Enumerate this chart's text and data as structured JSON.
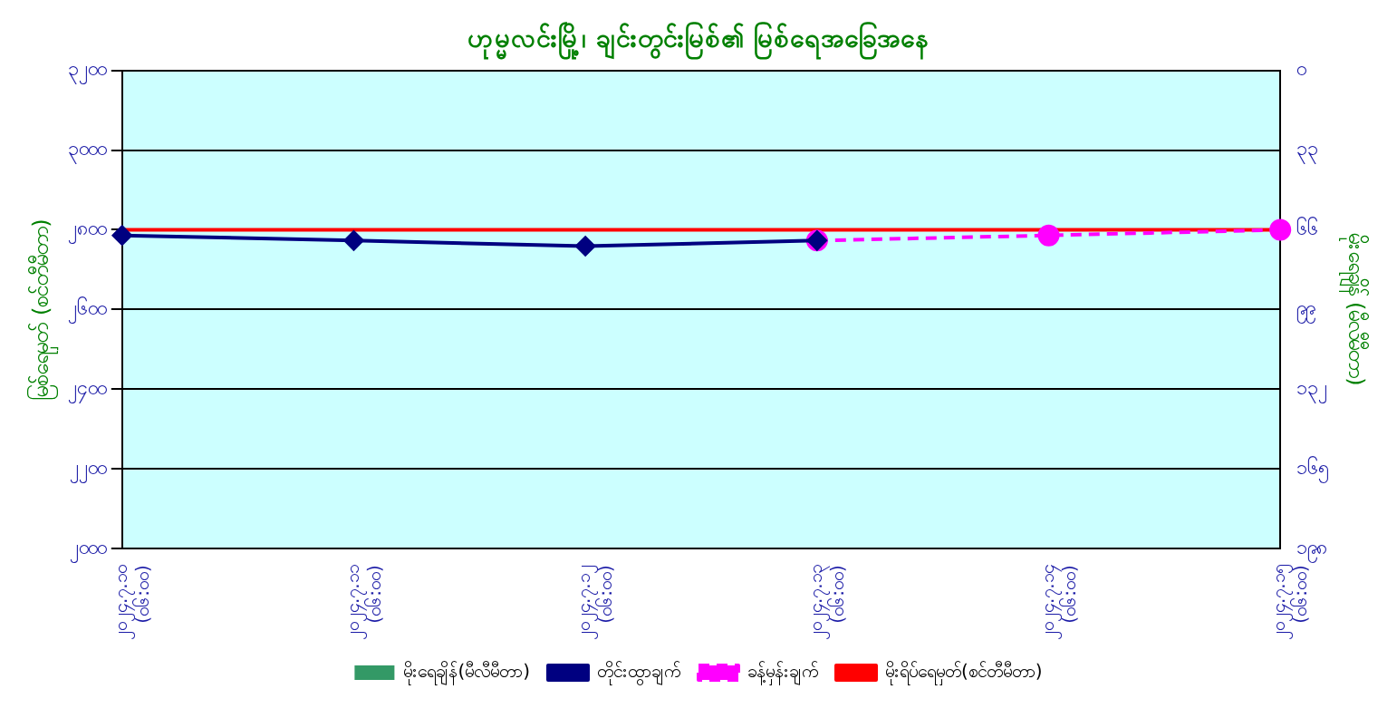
{
  "chart_data": {
    "type": "line",
    "title": "ဟုမ္မလင်းမြို့၊ ချင်းတွင်းမြစ်၏ မြစ်ရေအခြေအနေ",
    "ylabel": "မြစ်ရေမှတ် (စင်တီမီတာ)",
    "y2label": "မိုးရေချိန် (မီလီမီတာ)",
    "categories": [
      "၂၀၂၄.၇.၁၀ (၀၆:၀၀)",
      "၂၀၂၄.၇.၁၁ (၀၆:၀၀)",
      "၂၀၂၄.၇.၁၂ (၀၆:၀၀)",
      "၂၀၂၄.၇.၁၃ (၀၆:၀၀)",
      "၂၀၂၄.၇.၁၄ (၀၆:၀၀)",
      "၂၀၂၄.၇.၁၅ (၀၆:၀၀)"
    ],
    "series": [
      {
        "name": "မိုးရေချိန်(မီလီမီတာ)",
        "type": "bar",
        "color": "#339966",
        "values": [
          null,
          null,
          null,
          null,
          null,
          null
        ]
      },
      {
        "name": "တိုင်းထွာချက်",
        "color": "#000080",
        "marker": "diamond",
        "line_style": "solid",
        "values": [
          2786,
          2773,
          2759,
          2773,
          null,
          null
        ]
      },
      {
        "name": "ခန့်မှန်းချက်",
        "color": "#ff00ff",
        "marker": "circle",
        "line_style": "dashed",
        "values": [
          null,
          null,
          null,
          2773,
          2786,
          2800
        ]
      },
      {
        "name": "မိုးရိပ်ရေမှတ်(စင်တီမီတာ)",
        "color": "#ff0000",
        "marker": "none",
        "line_style": "solid",
        "values": [
          2800,
          2800,
          2800,
          2800,
          2800,
          2800
        ]
      }
    ],
    "ylim": [
      2000,
      3200
    ],
    "yticks": [
      {
        "value": 2000,
        "label": "၂၀၀၀"
      },
      {
        "value": 2200,
        "label": "၂၂၀၀"
      },
      {
        "value": 2400,
        "label": "၂၄၀၀"
      },
      {
        "value": 2600,
        "label": "၂၆၀၀"
      },
      {
        "value": 2800,
        "label": "၂၈၀၀"
      },
      {
        "value": 3000,
        "label": "၃၀၀၀"
      },
      {
        "value": 3200,
        "label": "၃၂၀၀"
      }
    ],
    "y2lim": [
      198,
      0
    ],
    "y2ticks": [
      {
        "value": 0,
        "label": "၀"
      },
      {
        "value": 33,
        "label": "၃၃"
      },
      {
        "value": 66,
        "label": "၆၆"
      },
      {
        "value": 99,
        "label": "၉၉"
      },
      {
        "value": 132,
        "label": "၁၃၂"
      },
      {
        "value": 165,
        "label": "၁၆၅"
      },
      {
        "value": 198,
        "label": "၁၉၈"
      }
    ],
    "grid": "y",
    "legend": "bottom"
  }
}
